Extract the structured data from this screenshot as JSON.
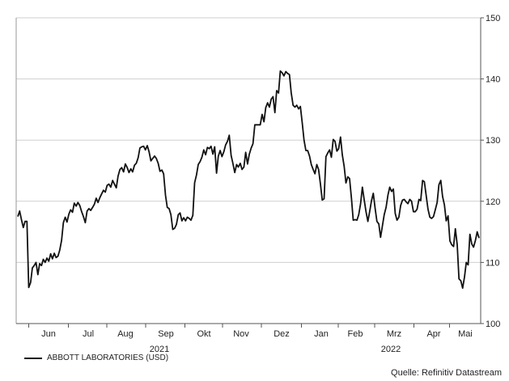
{
  "chart_data": {
    "type": "line",
    "title": "",
    "xlabel": "",
    "ylabel": "",
    "ylim": [
      100,
      150
    ],
    "y_ticks": [
      100,
      110,
      120,
      130,
      140,
      150
    ],
    "y_axis_side": "right",
    "grid": "horizontal",
    "x_tick_labels": [
      "Jun",
      "Jul",
      "Aug",
      "Sep",
      "Okt",
      "Nov",
      "Dez",
      "Jan",
      "Feb",
      "Mrz",
      "Apr",
      "Mai"
    ],
    "x_year_labels": [
      "2021",
      "2022"
    ],
    "legend_position": "bottom-left",
    "series": [
      {
        "name": "ABBOTT LABORATORIES (USD)",
        "color": "#111111",
        "values": [
          117.5,
          118.4,
          117.0,
          115.7,
          116.7,
          116.7,
          105.9,
          106.7,
          109.1,
          109.5,
          110.0,
          108.0,
          109.8,
          109.5,
          110.5,
          110.0,
          110.7,
          110.2,
          111.4,
          110.6,
          111.5,
          110.8,
          111.0,
          112.0,
          113.6,
          116.5,
          117.4,
          116.6,
          117.9,
          118.6,
          118.2,
          119.7,
          119.2,
          119.8,
          119.3,
          118.3,
          117.5,
          116.5,
          118.4,
          118.8,
          118.5,
          119.0,
          119.5,
          120.5,
          119.8,
          120.6,
          121.2,
          121.8,
          121.5,
          122.6,
          122.8,
          122.3,
          123.4,
          122.8,
          122.2,
          124.1,
          125.2,
          125.5,
          124.8,
          126.1,
          125.5,
          124.7,
          125.3,
          124.8,
          125.9,
          126.2,
          127.1,
          128.7,
          128.9,
          129.0,
          128.4,
          129.1,
          128.1,
          126.6,
          127.0,
          127.4,
          127.0,
          126.2,
          124.9,
          125.1,
          124.5,
          121.0,
          119.0,
          118.8,
          117.8,
          115.4,
          115.6,
          116.2,
          117.8,
          118.1,
          116.8,
          117.3,
          116.8,
          117.4,
          117.2,
          116.9,
          117.7,
          123.0,
          124.3,
          126.0,
          126.5,
          127.2,
          128.4,
          127.6,
          128.8,
          128.6,
          129.0,
          127.7,
          128.9,
          124.6,
          127.4,
          128.3,
          127.3,
          128.1,
          129.2,
          129.8,
          130.8,
          127.5,
          126.2,
          124.7,
          126.0,
          125.6,
          126.2,
          125.2,
          125.6,
          128.0,
          126.1,
          127.7,
          128.7,
          129.4,
          132.5,
          132.5,
          132.5,
          132.5,
          134.2,
          133.0,
          135.3,
          136.1,
          135.4,
          136.7,
          137.1,
          134.5,
          138.1,
          137.7,
          141.3,
          141.0,
          140.5,
          141.2,
          140.9,
          140.7,
          137.7,
          135.7,
          135.4,
          135.7,
          135.1,
          135.5,
          132.8,
          130.0,
          128.3,
          128.3,
          127.4,
          126.0,
          125.2,
          124.5,
          126.0,
          125.2,
          122.8,
          120.2,
          120.4,
          127.3,
          127.9,
          128.4,
          127.2,
          130.1,
          129.8,
          128.2,
          128.6,
          130.5,
          127.6,
          125.7,
          123.0,
          124.0,
          123.7,
          120.5,
          116.9,
          117.0,
          116.9,
          117.8,
          119.6,
          122.3,
          120.2,
          118.3,
          116.7,
          118.3,
          120.1,
          121.3,
          118.8,
          116.7,
          116.3,
          114.1,
          116.0,
          117.8,
          119.0,
          121.0,
          122.3,
          121.6,
          122.0,
          118.0,
          116.9,
          117.4,
          119.3,
          120.2,
          120.3,
          119.9,
          119.6,
          120.3,
          120.0,
          118.3,
          118.3,
          118.7,
          120.3,
          120.1,
          123.4,
          123.2,
          120.9,
          118.7,
          117.4,
          117.2,
          117.5,
          118.6,
          119.8,
          122.7,
          123.4,
          120.8,
          119.4,
          116.8,
          117.6,
          113.5,
          112.9,
          112.6,
          115.5,
          112.9,
          107.3,
          107.0,
          105.8,
          107.6,
          110.0,
          109.6,
          114.6,
          113.0,
          112.5,
          113.6,
          115.0,
          114.0
        ]
      }
    ]
  },
  "source": "Quelle: Refinitiv Datastream"
}
